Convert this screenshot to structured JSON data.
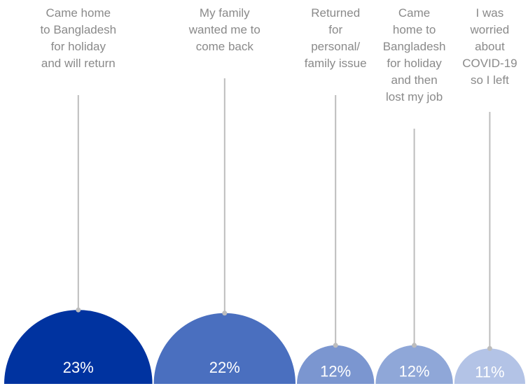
{
  "chart_data": {
    "type": "semicircle",
    "categories": [
      "Came home\nto Bangladesh\nfor holiday\nand will return",
      "My family\nwanted me to\ncome back",
      "Returned\nfor\npersonal/\nfamily issue",
      "Came\nhome to\nBangladesh\nfor holiday\nand then\nlost my job",
      "I was\nworried\nabout\nCOVID-19\nso I left"
    ],
    "values": [
      23,
      22,
      12,
      12,
      11
    ],
    "value_labels": [
      "23%",
      "22%",
      "12%",
      "12%",
      "11%"
    ],
    "colors": [
      "#0033a0",
      "#4a6fbf",
      "#7b96d0",
      "#8fa7d8",
      "#b3c3e6"
    ]
  }
}
